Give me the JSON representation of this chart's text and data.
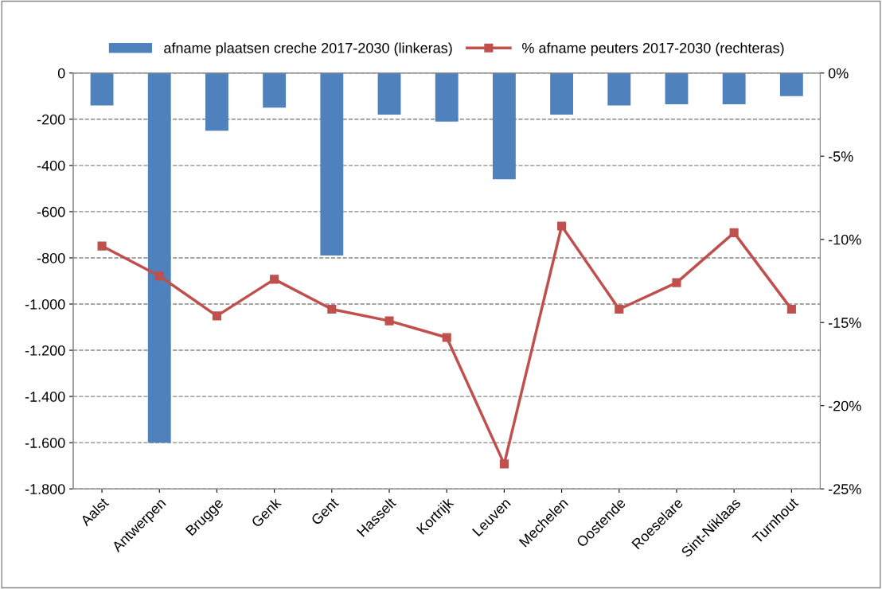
{
  "chart_data": {
    "type": "bar",
    "categories": [
      "Aalst",
      "Antwerpen",
      "Brugge",
      "Genk",
      "Gent",
      "Hasselt",
      "Kortrijk",
      "Leuven",
      "Mechelen",
      "Oostende",
      "Roeselare",
      "Sint-Niklaas",
      "Turnhout"
    ],
    "series": [
      {
        "name": "afname plaatsen creche 2017-2030 (linkeras)",
        "color": "#4f81bd",
        "values": [
          -140,
          -1600,
          -250,
          -150,
          -790,
          -180,
          -210,
          -460,
          -180,
          -140,
          -135,
          -135,
          -100
        ]
      },
      {
        "name": "% afname peuters 2017-2030 (rechteras)",
        "type": "line",
        "axis": "y2",
        "color": "#c0504d",
        "values": [
          -10.4,
          -12.2,
          -14.6,
          -12.4,
          -14.2,
          -14.9,
          -15.9,
          -23.5,
          -9.2,
          -14.2,
          -12.6,
          -9.6,
          -14.2
        ]
      }
    ],
    "ylim": [
      -1800,
      0
    ],
    "yticks": [
      {
        "value": -1800,
        "label": "-1.800"
      },
      {
        "value": -1600,
        "label": "-1.600"
      },
      {
        "value": -1400,
        "label": "-1.400"
      },
      {
        "value": -1200,
        "label": "-1.200"
      },
      {
        "value": -1000,
        "label": "-1.000"
      },
      {
        "value": -800,
        "label": "-800"
      },
      {
        "value": -600,
        "label": "-600"
      },
      {
        "value": -400,
        "label": "-400"
      },
      {
        "value": -200,
        "label": "-200"
      },
      0
    ],
    "y2lim": [
      -25,
      0
    ],
    "y2ticks": [
      {
        "value": -25,
        "label": "-25%"
      },
      {
        "value": -20,
        "label": "-20%"
      },
      {
        "value": -15,
        "label": "-15%"
      },
      {
        "value": -10,
        "label": "-10%"
      },
      {
        "value": -5,
        "label": "-5%"
      },
      {
        "value": 0,
        "label": "0%"
      }
    ],
    "grid": "y",
    "legend": "top",
    "marker": "square",
    "line_style": "solid"
  }
}
